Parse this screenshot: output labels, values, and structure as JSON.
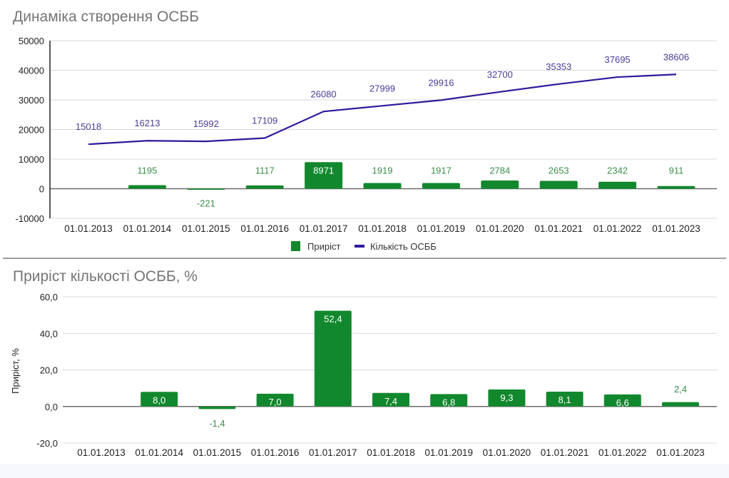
{
  "chart_data": [
    {
      "type": "bar+line",
      "title": "Динаміка створення ОСББ",
      "categories": [
        "01.01.2013",
        "01.01.2014",
        "01.01.2015",
        "01.01.2016",
        "01.01.2017",
        "01.01.2018",
        "01.01.2019",
        "01.01.2020",
        "01.01.2021",
        "01.01.2022",
        "01.01.2023"
      ],
      "ylim": [
        -10000,
        50000
      ],
      "yticks": [
        "-10000",
        "0",
        "10000",
        "20000",
        "30000",
        "40000",
        "50000"
      ],
      "ytick_values": [
        -10000,
        0,
        10000,
        20000,
        30000,
        40000,
        50000
      ],
      "grid": true,
      "legend_position": "bottom",
      "series": [
        {
          "name": "Приріст",
          "type": "bar",
          "color": "#12882e",
          "label_color": "#3c8f4c",
          "values": [
            null,
            1195,
            -221,
            1117,
            8971,
            1919,
            1917,
            2784,
            2653,
            2342,
            911
          ],
          "labels": [
            "",
            "1195",
            "-221",
            "1117",
            "8971",
            "1919",
            "1917",
            "2784",
            "2653",
            "2342",
            "911"
          ]
        },
        {
          "name": "Кількість ОСББ",
          "type": "line",
          "color": "#2e1a9c",
          "label_color": "#4a3d99",
          "values": [
            15018,
            16213,
            15992,
            17109,
            26080,
            27999,
            29916,
            32700,
            35353,
            37695,
            38606
          ],
          "labels": [
            "15018",
            "16213",
            "15992",
            "17109",
            "26080",
            "27999",
            "29916",
            "32700",
            "35353",
            "37695",
            "38606"
          ]
        }
      ]
    },
    {
      "type": "bar",
      "title": "Приріст кількості ОСББ, %",
      "ylabel": "Приріст, %",
      "categories": [
        "01.01.2013",
        "01.01.2014",
        "01.01.2015",
        "01.01.2016",
        "01.01.2017",
        "01.01.2018",
        "01.01.2019",
        "01.01.2020",
        "01.01.2021",
        "01.01.2022",
        "01.01.2023"
      ],
      "ylim": [
        -20,
        60
      ],
      "yticks": [
        "-20,0",
        "0,0",
        "20,0",
        "40,0",
        "60,0"
      ],
      "ytick_values": [
        -20,
        0,
        20,
        40,
        60
      ],
      "grid": true,
      "color": "#12882e",
      "values": [
        null,
        8.0,
        -1.4,
        7.0,
        52.4,
        7.4,
        6.8,
        9.3,
        8.1,
        6.6,
        2.4
      ],
      "labels": [
        "",
        "8,0",
        "-1,4",
        "7,0",
        "52,4",
        "7,4",
        "6,8",
        "9,3",
        "8,1",
        "6,6",
        "2,4"
      ]
    }
  ]
}
